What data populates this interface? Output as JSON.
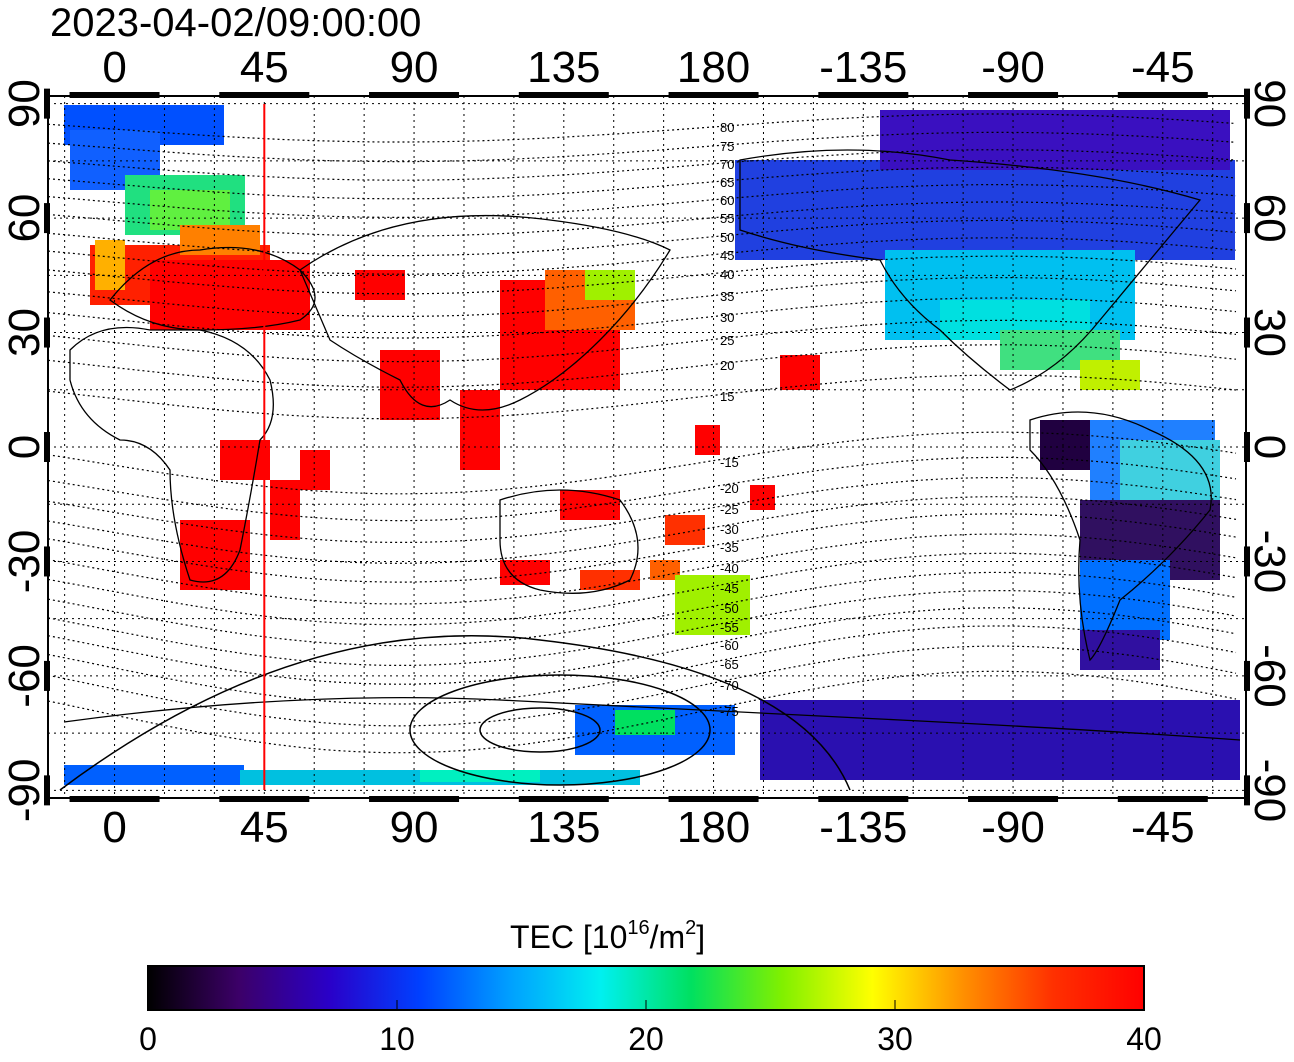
{
  "title": "2023-04-02/09:00:00",
  "lon_ticks": [
    "0",
    "45",
    "90",
    "135",
    "180",
    "-135",
    "-90",
    "-45"
  ],
  "lon_values": [
    0,
    45,
    90,
    135,
    180,
    225,
    270,
    315
  ],
  "lat_ticks": [
    "90",
    "60",
    "30",
    "0",
    "-30",
    "-60",
    "-90"
  ],
  "lat_values": [
    90,
    60,
    30,
    0,
    -30,
    -60,
    -90
  ],
  "lon_range": [
    -20,
    340
  ],
  "lat_range": [
    -92,
    92
  ],
  "meridian_marker_lon": 45,
  "contour_labels": [
    "80",
    "75",
    "70",
    "65",
    "60",
    "55",
    "50",
    "45",
    "40",
    "35",
    "30",
    "25",
    "20",
    "15",
    "-15",
    "-20",
    "-25",
    "-30",
    "-35",
    "-40",
    "-45",
    "-50",
    "-55",
    "-60",
    "-65",
    "-70",
    "-75"
  ],
  "colorbar": {
    "label_main": "TEC  [10",
    "label_sup1": "16",
    "label_mid": "/m",
    "label_sup2": "2",
    "label_end": "]",
    "ticks": [
      "0",
      "10",
      "20",
      "30",
      "40"
    ],
    "tick_values": [
      0,
      10,
      20,
      30,
      40
    ],
    "range": [
      0,
      40
    ],
    "colors": [
      "#000000",
      "#3c0068",
      "#2a00c8",
      "#0040ff",
      "#00a0ff",
      "#00f0f0",
      "#00e060",
      "#80f000",
      "#ffff00",
      "#ff9000",
      "#ff3000",
      "#ff0000"
    ]
  }
}
